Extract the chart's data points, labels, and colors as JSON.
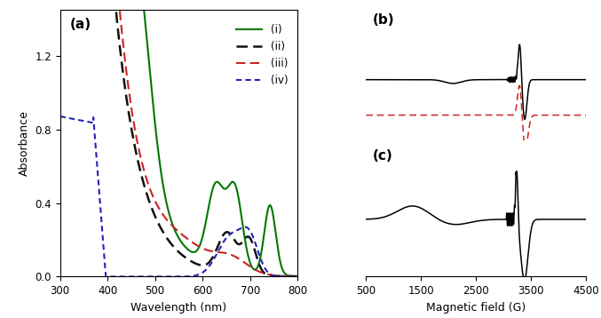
{
  "panel_a_label": "(a)",
  "panel_b_label": "(b)",
  "panel_c_label": "(c)",
  "uv_xlabel": "Wavelength (nm)",
  "uv_ylabel": "Absorbance",
  "epr_xlabel": "Magnetic field (G)",
  "uv_xlim": [
    300,
    800
  ],
  "uv_ylim": [
    0,
    1.45
  ],
  "uv_yticks": [
    0,
    0.4,
    0.8,
    1.2
  ],
  "uv_xticks": [
    300,
    400,
    500,
    600,
    700,
    800
  ],
  "epr_xlim": [
    500,
    4500
  ],
  "epr_xticks": [
    500,
    1500,
    2500,
    3500,
    4500
  ]
}
